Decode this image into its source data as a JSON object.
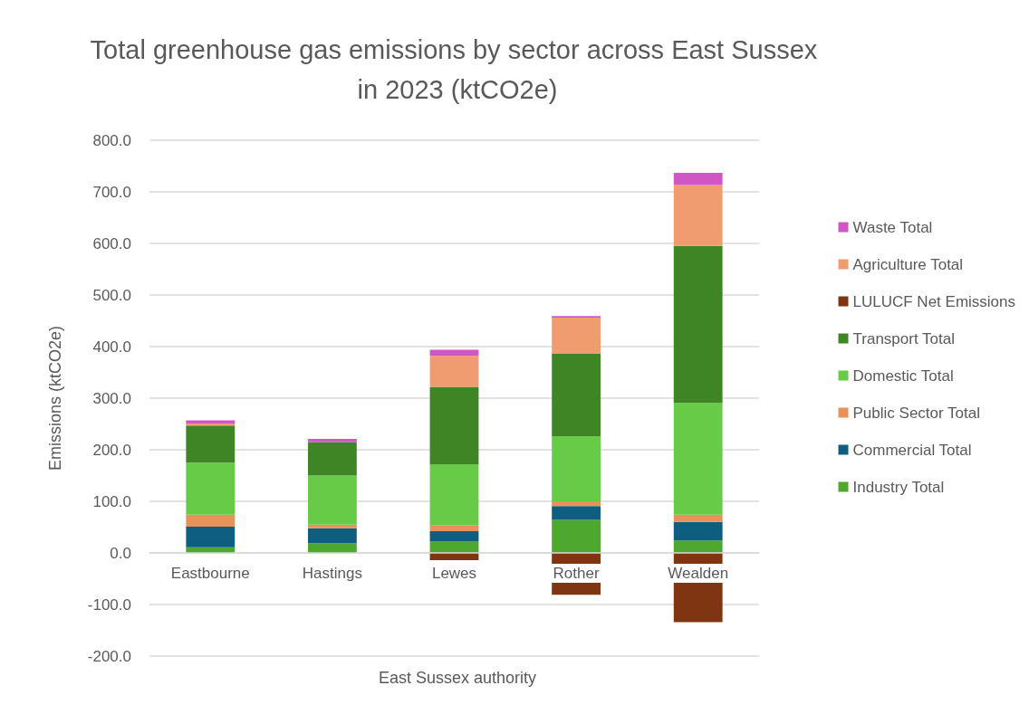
{
  "chart_data": {
    "type": "bar",
    "title": "Total greenhouse gas emissions by sector across East Sussex in 2023 (ktCO2e)",
    "xlabel": "East Sussex authority",
    "ylabel": "Emissions (ktCO2e)",
    "categories": [
      "Eastbourne",
      "Hastings",
      "Lewes",
      "Rother",
      "Wealden"
    ],
    "stacked": true,
    "series": [
      {
        "name": "Industry Total",
        "color": "#4ea72e",
        "values": [
          11,
          19,
          22,
          64,
          24
        ]
      },
      {
        "name": "Commercial Total",
        "color": "#0e5f7f",
        "values": [
          40,
          29,
          20,
          27,
          36
        ]
      },
      {
        "name": "Public Sector Total",
        "color": "#e8915a",
        "values": [
          23,
          7,
          11,
          9,
          14
        ]
      },
      {
        "name": "Domestic Total",
        "color": "#67cb47",
        "values": [
          101,
          95,
          119,
          126,
          217
        ]
      },
      {
        "name": "Transport Total",
        "color": "#3f8526",
        "values": [
          72,
          65,
          150,
          161,
          304
        ]
      },
      {
        "name": "LULUCF Net Emissions",
        "color": "#7f3511",
        "values": [
          null,
          null,
          -14,
          -81,
          -134
        ]
      },
      {
        "name": "Agriculture Total",
        "color": "#f09c70",
        "values": [
          4,
          null,
          60,
          69,
          118
        ]
      },
      {
        "name": "Waste Total",
        "color": "#d056c3",
        "values": [
          6,
          6,
          12,
          3,
          24
        ]
      }
    ],
    "ylim": [
      -200,
      800
    ],
    "yticks": [
      {
        "value": -200,
        "label": "-200.0"
      },
      {
        "value": -100,
        "label": "-100.0"
      },
      {
        "value": 0,
        "label": "0.0"
      },
      {
        "value": 100,
        "label": "100.0"
      },
      {
        "value": 200,
        "label": "200.0"
      },
      {
        "value": 300,
        "label": "300.0"
      },
      {
        "value": 400,
        "label": "400.0"
      },
      {
        "value": 500,
        "label": "500.0"
      },
      {
        "value": 600,
        "label": "600.0"
      },
      {
        "value": 700,
        "label": "700.0"
      },
      {
        "value": 800,
        "label": "800.0"
      }
    ],
    "grid": "y",
    "legend": "right"
  }
}
